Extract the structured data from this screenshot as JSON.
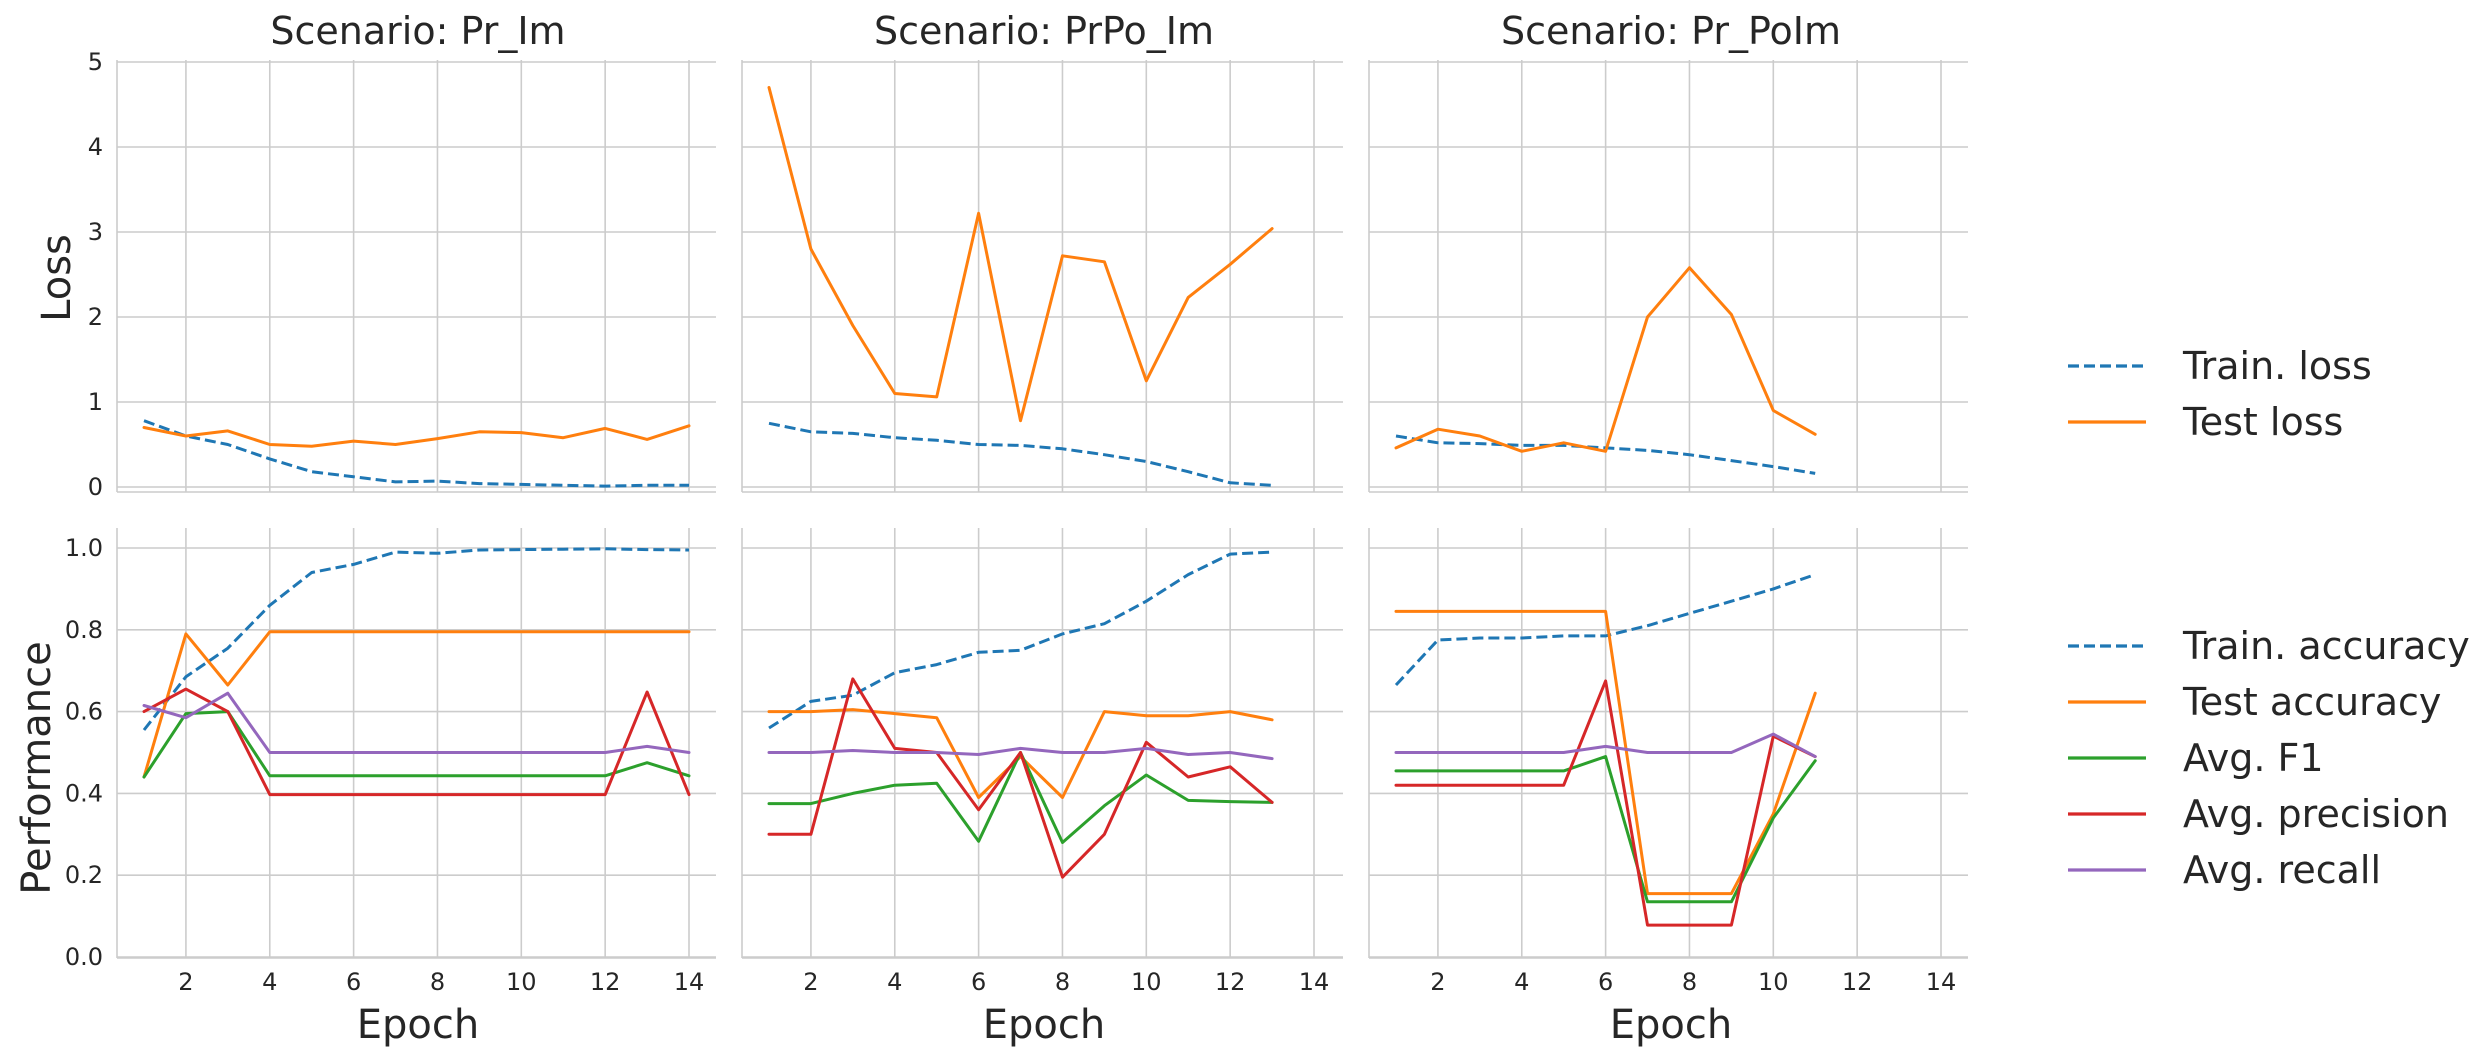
{
  "chart_data": {
    "type": "line",
    "x_label": "Epoch",
    "rows": [
      {
        "y_label": "Loss",
        "ylim": [
          0,
          5
        ],
        "yticks": [
          "0",
          "1",
          "2",
          "3",
          "4",
          "5"
        ],
        "ytick_values": [
          0,
          1,
          2,
          3,
          4,
          5
        ]
      },
      {
        "y_label": "Performance",
        "ylim": [
          0,
          1.05
        ],
        "yticks": [
          "0.0",
          "0.2",
          "0.4",
          "0.6",
          "0.8",
          "1.0"
        ],
        "ytick_values": [
          0,
          0.2,
          0.4,
          0.6,
          0.8,
          1.0
        ]
      }
    ],
    "xlim": [
      0,
      15
    ],
    "xticks": [
      "2",
      "4",
      "6",
      "8",
      "10",
      "12",
      "14"
    ],
    "xtick_values": [
      2,
      4,
      6,
      8,
      10,
      12,
      14
    ],
    "grid": true,
    "series_styles": {
      "Train. loss": {
        "color": "#1f77b4",
        "dash": true
      },
      "Test loss": {
        "color": "#ff7f0e",
        "dash": false
      },
      "Train. accuracy": {
        "color": "#1f77b4",
        "dash": true
      },
      "Test accuracy": {
        "color": "#ff7f0e",
        "dash": false
      },
      "Avg. F1": {
        "color": "#2ca02c",
        "dash": false
      },
      "Avg. precision": {
        "color": "#d62728",
        "dash": false
      },
      "Avg. recall": {
        "color": "#9467bd",
        "dash": false
      }
    },
    "legends": [
      {
        "position": "right",
        "entries": [
          "Train. loss",
          "Test loss"
        ]
      },
      {
        "position": "right",
        "entries": [
          "Train. accuracy",
          "Test accuracy",
          "Avg. F1",
          "Avg. precision",
          "Avg. recall"
        ]
      }
    ],
    "panels": [
      {
        "title": "Scenario: Pr_Im",
        "loss": [
          {
            "name": "Train. loss",
            "x": [
              1,
              2,
              3,
              4,
              5,
              6,
              7,
              8,
              9,
              10,
              11,
              12,
              13,
              14
            ],
            "y": [
              0.78,
              0.6,
              0.5,
              0.33,
              0.18,
              0.12,
              0.06,
              0.07,
              0.04,
              0.03,
              0.02,
              0.01,
              0.02,
              0.02
            ]
          },
          {
            "name": "Test loss",
            "x": [
              1,
              2,
              3,
              4,
              5,
              6,
              7,
              8,
              9,
              10,
              11,
              12,
              13,
              14
            ],
            "y": [
              0.7,
              0.6,
              0.66,
              0.5,
              0.48,
              0.54,
              0.5,
              0.57,
              0.65,
              0.64,
              0.58,
              0.69,
              0.56,
              0.72
            ]
          }
        ],
        "perf": [
          {
            "name": "Train. accuracy",
            "x": [
              1,
              2,
              3,
              4,
              5,
              6,
              7,
              8,
              9,
              10,
              11,
              12,
              13,
              14
            ],
            "y": [
              0.555,
              0.685,
              0.755,
              0.86,
              0.94,
              0.96,
              0.99,
              0.987,
              0.995,
              0.996,
              0.997,
              0.998,
              0.996,
              0.995
            ]
          },
          {
            "name": "Test accuracy",
            "x": [
              1,
              2,
              3,
              4,
              5,
              6,
              7,
              8,
              9,
              10,
              11,
              12,
              13,
              14
            ],
            "y": [
              0.44,
              0.79,
              0.665,
              0.795,
              0.795,
              0.795,
              0.795,
              0.795,
              0.795,
              0.795,
              0.795,
              0.795,
              0.795,
              0.795
            ]
          },
          {
            "name": "Avg. F1",
            "x": [
              1,
              2,
              3,
              4,
              5,
              6,
              7,
              8,
              9,
              10,
              11,
              12,
              13,
              14
            ],
            "y": [
              0.44,
              0.595,
              0.6,
              0.443,
              0.443,
              0.443,
              0.443,
              0.443,
              0.443,
              0.443,
              0.443,
              0.443,
              0.475,
              0.443
            ]
          },
          {
            "name": "Avg. precision",
            "x": [
              1,
              2,
              3,
              4,
              5,
              6,
              7,
              8,
              9,
              10,
              11,
              12,
              13,
              14
            ],
            "y": [
              0.6,
              0.655,
              0.6,
              0.397,
              0.397,
              0.397,
              0.397,
              0.397,
              0.397,
              0.397,
              0.397,
              0.397,
              0.648,
              0.397
            ]
          },
          {
            "name": "Avg. recall",
            "x": [
              1,
              2,
              3,
              4,
              5,
              6,
              7,
              8,
              9,
              10,
              11,
              12,
              13,
              14
            ],
            "y": [
              0.615,
              0.585,
              0.645,
              0.5,
              0.5,
              0.5,
              0.5,
              0.5,
              0.5,
              0.5,
              0.5,
              0.5,
              0.515,
              0.5
            ]
          }
        ]
      },
      {
        "title": "Scenario: PrPo_Im",
        "loss": [
          {
            "name": "Train. loss",
            "x": [
              1,
              2,
              3,
              4,
              5,
              6,
              7,
              8,
              9,
              10,
              11,
              12,
              13
            ],
            "y": [
              0.75,
              0.65,
              0.63,
              0.58,
              0.55,
              0.5,
              0.49,
              0.45,
              0.38,
              0.3,
              0.18,
              0.05,
              0.02
            ]
          },
          {
            "name": "Test loss",
            "x": [
              1,
              2,
              3,
              4,
              5,
              6,
              7,
              8,
              9,
              10,
              11,
              12,
              13
            ],
            "y": [
              4.7,
              2.8,
              1.9,
              1.1,
              1.06,
              3.22,
              0.78,
              2.72,
              2.65,
              1.25,
              2.23,
              2.62,
              3.04
            ]
          }
        ],
        "perf": [
          {
            "name": "Train. accuracy",
            "x": [
              1,
              2,
              3,
              4,
              5,
              6,
              7,
              8,
              9,
              10,
              11,
              12,
              13
            ],
            "y": [
              0.56,
              0.625,
              0.64,
              0.695,
              0.715,
              0.745,
              0.75,
              0.79,
              0.815,
              0.87,
              0.935,
              0.985,
              0.99
            ]
          },
          {
            "name": "Test accuracy",
            "x": [
              1,
              2,
              3,
              4,
              5,
              6,
              7,
              8,
              9,
              10,
              11,
              12,
              13
            ],
            "y": [
              0.6,
              0.6,
              0.605,
              0.595,
              0.585,
              0.39,
              0.49,
              0.39,
              0.6,
              0.59,
              0.59,
              0.6,
              0.58
            ]
          },
          {
            "name": "Avg. F1",
            "x": [
              1,
              2,
              3,
              4,
              5,
              6,
              7,
              8,
              9,
              10,
              11,
              12,
              13
            ],
            "y": [
              0.375,
              0.375,
              0.4,
              0.42,
              0.425,
              0.283,
              0.5,
              0.28,
              0.37,
              0.445,
              0.383,
              0.38,
              0.378
            ]
          },
          {
            "name": "Avg. precision",
            "x": [
              1,
              2,
              3,
              4,
              5,
              6,
              7,
              8,
              9,
              10,
              11,
              12,
              13
            ],
            "y": [
              0.3,
              0.3,
              0.68,
              0.51,
              0.5,
              0.36,
              0.5,
              0.195,
              0.3,
              0.525,
              0.44,
              0.465,
              0.378
            ]
          },
          {
            "name": "Avg. recall",
            "x": [
              1,
              2,
              3,
              4,
              5,
              6,
              7,
              8,
              9,
              10,
              11,
              12,
              13
            ],
            "y": [
              0.5,
              0.5,
              0.505,
              0.5,
              0.5,
              0.495,
              0.51,
              0.5,
              0.5,
              0.51,
              0.495,
              0.5,
              0.485
            ]
          }
        ]
      },
      {
        "title": "Scenario: Pr_PoIm",
        "loss": [
          {
            "name": "Train. loss",
            "x": [
              1,
              2,
              3,
              4,
              5,
              6,
              7,
              8,
              9,
              10,
              11
            ],
            "y": [
              0.6,
              0.52,
              0.51,
              0.49,
              0.49,
              0.46,
              0.43,
              0.38,
              0.31,
              0.24,
              0.16
            ]
          },
          {
            "name": "Test loss",
            "x": [
              1,
              2,
              3,
              4,
              5,
              6,
              7,
              8,
              9,
              10,
              11
            ],
            "y": [
              0.46,
              0.68,
              0.6,
              0.42,
              0.52,
              0.42,
              2.0,
              2.58,
              2.03,
              0.9,
              0.62
            ]
          }
        ],
        "perf": [
          {
            "name": "Train. accuracy",
            "x": [
              1,
              2,
              3,
              4,
              5,
              6,
              7,
              8,
              9,
              10,
              11
            ],
            "y": [
              0.665,
              0.775,
              0.78,
              0.78,
              0.785,
              0.785,
              0.81,
              0.84,
              0.87,
              0.9,
              0.935
            ]
          },
          {
            "name": "Test accuracy",
            "x": [
              1,
              2,
              3,
              4,
              5,
              6,
              7,
              8,
              9,
              10,
              11
            ],
            "y": [
              0.845,
              0.845,
              0.845,
              0.845,
              0.845,
              0.845,
              0.155,
              0.155,
              0.155,
              0.35,
              0.645
            ]
          },
          {
            "name": "Avg. F1",
            "x": [
              1,
              2,
              3,
              4,
              5,
              6,
              7,
              8,
              9,
              10,
              11
            ],
            "y": [
              0.455,
              0.455,
              0.455,
              0.455,
              0.455,
              0.49,
              0.135,
              0.135,
              0.135,
              0.34,
              0.48
            ]
          },
          {
            "name": "Avg. precision",
            "x": [
              1,
              2,
              3,
              4,
              5,
              6,
              7,
              8,
              9,
              10,
              11
            ],
            "y": [
              0.42,
              0.42,
              0.42,
              0.42,
              0.42,
              0.675,
              0.078,
              0.078,
              0.078,
              0.54,
              0.49
            ]
          },
          {
            "name": "Avg. recall",
            "x": [
              1,
              2,
              3,
              4,
              5,
              6,
              7,
              8,
              9,
              10,
              11
            ],
            "y": [
              0.5,
              0.5,
              0.5,
              0.5,
              0.5,
              0.515,
              0.5,
              0.5,
              0.5,
              0.545,
              0.49
            ]
          }
        ]
      }
    ]
  }
}
